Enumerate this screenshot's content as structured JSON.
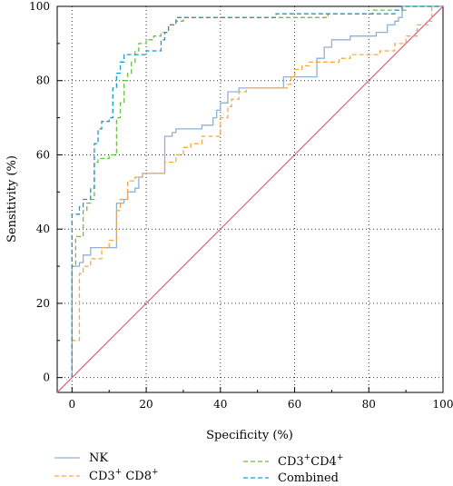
{
  "chart_data": {
    "type": "line",
    "xlabel": "Specificity (%)",
    "ylabel": "Sensitivity (%)",
    "xlim": [
      -4,
      100
    ],
    "ylim": [
      -4,
      100
    ],
    "xticks": [
      0,
      20,
      40,
      60,
      80,
      100
    ],
    "yticks": [
      0,
      20,
      40,
      60,
      80,
      100
    ],
    "grid": "dotted",
    "legend_position": "bottom",
    "series": [
      {
        "name": "NK",
        "color": "#8fb1d6",
        "dash": "solid",
        "legend_segments": [
          {
            "text": "NK",
            "sup": ""
          }
        ],
        "points": [
          [
            0,
            0
          ],
          [
            0,
            30
          ],
          [
            2,
            30
          ],
          [
            2,
            31
          ],
          [
            3,
            31
          ],
          [
            3,
            33
          ],
          [
            5,
            33
          ],
          [
            5,
            35
          ],
          [
            12,
            35
          ],
          [
            12,
            47
          ],
          [
            14,
            47
          ],
          [
            14,
            48
          ],
          [
            15,
            48
          ],
          [
            15,
            50
          ],
          [
            17,
            50
          ],
          [
            17,
            51
          ],
          [
            18,
            51
          ],
          [
            18,
            54
          ],
          [
            19,
            54
          ],
          [
            19,
            55
          ],
          [
            25,
            55
          ],
          [
            25,
            65
          ],
          [
            27,
            65
          ],
          [
            27,
            66
          ],
          [
            28,
            66
          ],
          [
            28,
            67
          ],
          [
            35,
            67
          ],
          [
            35,
            68
          ],
          [
            38,
            68
          ],
          [
            38,
            70
          ],
          [
            39,
            70
          ],
          [
            39,
            72
          ],
          [
            40,
            72
          ],
          [
            40,
            74
          ],
          [
            42,
            74
          ],
          [
            42,
            77
          ],
          [
            45,
            77
          ],
          [
            45,
            78
          ],
          [
            57,
            78
          ],
          [
            57,
            81
          ],
          [
            66,
            81
          ],
          [
            66,
            86
          ],
          [
            68,
            86
          ],
          [
            68,
            89
          ],
          [
            70,
            89
          ],
          [
            70,
            91
          ],
          [
            75,
            91
          ],
          [
            75,
            92
          ],
          [
            82,
            92
          ],
          [
            82,
            93
          ],
          [
            85,
            93
          ],
          [
            85,
            95
          ],
          [
            87,
            95
          ],
          [
            87,
            96
          ],
          [
            88,
            96
          ],
          [
            88,
            97
          ],
          [
            89,
            97
          ],
          [
            89,
            100
          ],
          [
            100,
            100
          ]
        ]
      },
      {
        "name": "CD3+ CD8+",
        "color": "#f3a94a",
        "dash": "dashed",
        "legend_segments": [
          {
            "text": "CD3",
            "sup": "+"
          },
          {
            "text": " CD8",
            "sup": "+"
          }
        ],
        "points": [
          [
            0,
            0
          ],
          [
            0,
            10
          ],
          [
            2,
            10
          ],
          [
            2,
            28
          ],
          [
            3,
            28
          ],
          [
            3,
            30
          ],
          [
            5,
            30
          ],
          [
            5,
            32
          ],
          [
            8,
            32
          ],
          [
            8,
            35
          ],
          [
            10,
            35
          ],
          [
            10,
            37
          ],
          [
            12,
            37
          ],
          [
            12,
            45
          ],
          [
            13,
            45
          ],
          [
            13,
            48
          ],
          [
            15,
            48
          ],
          [
            15,
            53
          ],
          [
            17,
            53
          ],
          [
            17,
            54
          ],
          [
            19,
            54
          ],
          [
            19,
            55
          ],
          [
            25,
            55
          ],
          [
            25,
            58
          ],
          [
            28,
            58
          ],
          [
            28,
            60
          ],
          [
            30,
            60
          ],
          [
            30,
            62
          ],
          [
            32,
            62
          ],
          [
            32,
            63
          ],
          [
            35,
            63
          ],
          [
            35,
            65
          ],
          [
            40,
            65
          ],
          [
            40,
            70
          ],
          [
            42,
            70
          ],
          [
            42,
            73
          ],
          [
            43,
            73
          ],
          [
            43,
            75
          ],
          [
            45,
            75
          ],
          [
            45,
            77
          ],
          [
            47,
            77
          ],
          [
            47,
            78
          ],
          [
            58,
            78
          ],
          [
            58,
            79
          ],
          [
            59,
            79
          ],
          [
            59,
            81
          ],
          [
            60,
            81
          ],
          [
            60,
            83
          ],
          [
            62,
            83
          ],
          [
            62,
            84
          ],
          [
            64,
            84
          ],
          [
            64,
            85
          ],
          [
            72,
            85
          ],
          [
            72,
            86
          ],
          [
            75,
            86
          ],
          [
            75,
            87
          ],
          [
            83,
            87
          ],
          [
            83,
            88
          ],
          [
            87,
            88
          ],
          [
            87,
            90
          ],
          [
            90,
            90
          ],
          [
            90,
            92
          ],
          [
            93,
            92
          ],
          [
            93,
            95
          ],
          [
            96,
            95
          ],
          [
            96,
            96
          ],
          [
            97,
            96
          ],
          [
            97,
            100
          ],
          [
            100,
            100
          ]
        ]
      },
      {
        "name": "CD3+CD4+",
        "color": "#6abf45",
        "dash": "dashed",
        "legend_segments": [
          {
            "text": "CD3",
            "sup": "+"
          },
          {
            "text": "CD4",
            "sup": "+"
          }
        ],
        "points": [
          [
            0,
            0
          ],
          [
            0,
            30
          ],
          [
            1,
            30
          ],
          [
            1,
            38
          ],
          [
            3,
            38
          ],
          [
            3,
            45
          ],
          [
            4,
            45
          ],
          [
            4,
            47
          ],
          [
            5,
            47
          ],
          [
            5,
            48
          ],
          [
            6,
            48
          ],
          [
            6,
            58
          ],
          [
            7,
            58
          ],
          [
            7,
            59
          ],
          [
            10,
            59
          ],
          [
            10,
            60
          ],
          [
            12,
            60
          ],
          [
            12,
            70
          ],
          [
            13,
            70
          ],
          [
            13,
            74
          ],
          [
            14,
            74
          ],
          [
            14,
            80
          ],
          [
            15,
            80
          ],
          [
            15,
            82
          ],
          [
            16,
            82
          ],
          [
            16,
            85
          ],
          [
            17,
            85
          ],
          [
            17,
            88
          ],
          [
            18,
            88
          ],
          [
            18,
            90
          ],
          [
            20,
            90
          ],
          [
            20,
            91
          ],
          [
            22,
            91
          ],
          [
            22,
            92
          ],
          [
            24,
            92
          ],
          [
            24,
            93
          ],
          [
            26,
            93
          ],
          [
            26,
            95
          ],
          [
            28,
            95
          ],
          [
            28,
            96
          ],
          [
            30,
            96
          ],
          [
            30,
            97
          ],
          [
            69,
            97
          ],
          [
            69,
            98
          ],
          [
            81,
            98
          ],
          [
            81,
            99
          ],
          [
            90,
            99
          ],
          [
            90,
            100
          ],
          [
            100,
            100
          ]
        ]
      },
      {
        "name": "Combined",
        "color": "#1a9ac9",
        "dash": "dashed",
        "legend_segments": [
          {
            "text": "Combined",
            "sup": ""
          }
        ],
        "points": [
          [
            0,
            0
          ],
          [
            0,
            44
          ],
          [
            2,
            44
          ],
          [
            2,
            46
          ],
          [
            3,
            46
          ],
          [
            3,
            48
          ],
          [
            5,
            48
          ],
          [
            5,
            51
          ],
          [
            6,
            51
          ],
          [
            6,
            63
          ],
          [
            7,
            63
          ],
          [
            7,
            67
          ],
          [
            8,
            67
          ],
          [
            8,
            69
          ],
          [
            10,
            69
          ],
          [
            10,
            70
          ],
          [
            11,
            70
          ],
          [
            11,
            78
          ],
          [
            12,
            78
          ],
          [
            12,
            82
          ],
          [
            13,
            82
          ],
          [
            13,
            85
          ],
          [
            14,
            85
          ],
          [
            14,
            87
          ],
          [
            20,
            87
          ],
          [
            20,
            88
          ],
          [
            24,
            88
          ],
          [
            24,
            91
          ],
          [
            25,
            91
          ],
          [
            25,
            93
          ],
          [
            26,
            93
          ],
          [
            26,
            95
          ],
          [
            28,
            95
          ],
          [
            28,
            97
          ],
          [
            55,
            97
          ],
          [
            55,
            98
          ],
          [
            87,
            98
          ],
          [
            87,
            99
          ],
          [
            89,
            99
          ],
          [
            89,
            100
          ],
          [
            100,
            100
          ]
        ]
      },
      {
        "name": "",
        "color": "#d16b8c",
        "dash": "solid",
        "legend_segments": [],
        "points": [
          [
            -4,
            -4
          ],
          [
            100,
            100
          ]
        ]
      }
    ]
  }
}
